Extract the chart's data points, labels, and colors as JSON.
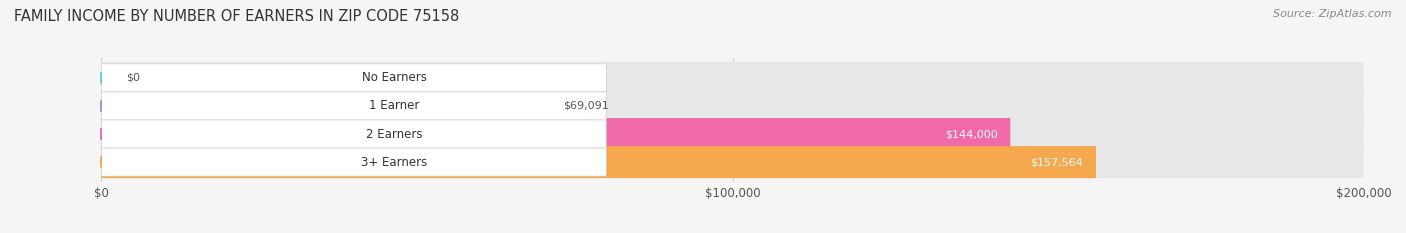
{
  "title": "FAMILY INCOME BY NUMBER OF EARNERS IN ZIP CODE 75158",
  "source": "Source: ZipAtlas.com",
  "categories": [
    "No Earners",
    "1 Earner",
    "2 Earners",
    "3+ Earners"
  ],
  "values": [
    0,
    69091,
    144000,
    157564
  ],
  "value_labels": [
    "$0",
    "$69,091",
    "$144,000",
    "$157,564"
  ],
  "bar_colors": [
    "#5dd0cc",
    "#9898d8",
    "#f06aaa",
    "#f5a84e"
  ],
  "bar_bg_color": "#e8e8e8",
  "xlim": [
    0,
    200000
  ],
  "xtick_values": [
    0,
    100000,
    200000
  ],
  "xtick_labels": [
    "$0",
    "$100,000",
    "$200,000"
  ],
  "title_fontsize": 10.5,
  "source_fontsize": 8,
  "label_fontsize": 8.5,
  "value_fontsize": 8,
  "background_color": "#f5f5f5"
}
